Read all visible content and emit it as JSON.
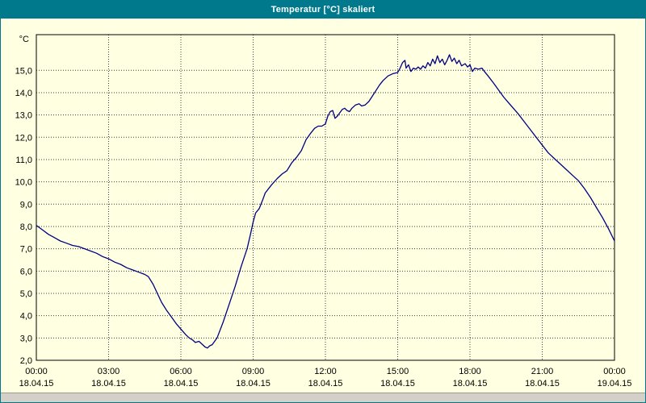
{
  "window": {
    "title": "Temperatur [°C] skaliert"
  },
  "colors": {
    "titlebar": "#00798C",
    "background": "#FFFFE1",
    "series": "#000080",
    "grid": "#404040",
    "frame": "#000000"
  },
  "chart_data": {
    "type": "line",
    "title": "Temperatur [°C] skaliert",
    "grid": "dotted",
    "legend": "none",
    "xlabel": "",
    "ylabel": "",
    "xlim": [
      0,
      24
    ],
    "ylim": [
      2,
      16.6
    ],
    "y_axis": {
      "unit": "°C",
      "ticks": [
        {
          "value": 15,
          "label": "15,0"
        },
        {
          "value": 14,
          "label": "14,0"
        },
        {
          "value": 13,
          "label": "13,0"
        },
        {
          "value": 12,
          "label": "12,0"
        },
        {
          "value": 11,
          "label": "11,0"
        },
        {
          "value": 10,
          "label": "10,0"
        },
        {
          "value": 9,
          "label": "9,0"
        },
        {
          "value": 8,
          "label": "8,0"
        },
        {
          "value": 7,
          "label": "7,0"
        },
        {
          "value": 6,
          "label": "6,0"
        },
        {
          "value": 5,
          "label": "5,0"
        },
        {
          "value": 4,
          "label": "4,0"
        },
        {
          "value": 3,
          "label": "3,0"
        },
        {
          "value": 2,
          "label": "2,0"
        }
      ]
    },
    "x_axis": {
      "ticks": [
        {
          "hour": 0,
          "time": "00:00",
          "date": "18.04.15"
        },
        {
          "hour": 3,
          "time": "03:00",
          "date": "18.04.15"
        },
        {
          "hour": 6,
          "time": "06:00",
          "date": "18.04.15"
        },
        {
          "hour": 9,
          "time": "09:00",
          "date": "18.04.15"
        },
        {
          "hour": 12,
          "time": "12:00",
          "date": "18.04.15"
        },
        {
          "hour": 15,
          "time": "15:00",
          "date": "18.04.15"
        },
        {
          "hour": 18,
          "time": "18:00",
          "date": "18.04.15"
        },
        {
          "hour": 21,
          "time": "21:00",
          "date": "18.04.15"
        },
        {
          "hour": 24,
          "time": "00:00",
          "date": "19.04.15"
        }
      ]
    },
    "series": [
      {
        "name": "Temperatur [°C]",
        "color": "#000080",
        "points": [
          [
            0,
            8.05
          ],
          [
            0.25,
            7.85
          ],
          [
            0.5,
            7.65
          ],
          [
            0.75,
            7.5
          ],
          [
            1,
            7.35
          ],
          [
            1.25,
            7.25
          ],
          [
            1.5,
            7.15
          ],
          [
            1.75,
            7.1
          ],
          [
            2,
            7.0
          ],
          [
            2.25,
            6.9
          ],
          [
            2.5,
            6.8
          ],
          [
            2.75,
            6.65
          ],
          [
            3,
            6.55
          ],
          [
            3.25,
            6.4
          ],
          [
            3.5,
            6.3
          ],
          [
            3.75,
            6.15
          ],
          [
            4,
            6.05
          ],
          [
            4.25,
            5.95
          ],
          [
            4.5,
            5.85
          ],
          [
            4.65,
            5.75
          ],
          [
            4.85,
            5.4
          ],
          [
            5,
            5.05
          ],
          [
            5.2,
            4.6
          ],
          [
            5.4,
            4.25
          ],
          [
            5.6,
            3.95
          ],
          [
            5.8,
            3.65
          ],
          [
            6,
            3.4
          ],
          [
            6.2,
            3.15
          ],
          [
            6.35,
            3.0
          ],
          [
            6.5,
            2.9
          ],
          [
            6.6,
            2.8
          ],
          [
            6.75,
            2.85
          ],
          [
            6.9,
            2.7
          ],
          [
            7,
            2.6
          ],
          [
            7.1,
            2.55
          ],
          [
            7.2,
            2.65
          ],
          [
            7.3,
            2.7
          ],
          [
            7.5,
            3.0
          ],
          [
            7.75,
            3.7
          ],
          [
            8,
            4.5
          ],
          [
            8.25,
            5.3
          ],
          [
            8.5,
            6.2
          ],
          [
            8.75,
            7.0
          ],
          [
            8.9,
            7.7
          ],
          [
            9,
            8.2
          ],
          [
            9.1,
            8.6
          ],
          [
            9.25,
            8.8
          ],
          [
            9.4,
            9.2
          ],
          [
            9.5,
            9.5
          ],
          [
            9.75,
            9.85
          ],
          [
            10,
            10.15
          ],
          [
            10.2,
            10.35
          ],
          [
            10.4,
            10.5
          ],
          [
            10.6,
            10.85
          ],
          [
            10.8,
            11.1
          ],
          [
            11,
            11.4
          ],
          [
            11.2,
            11.9
          ],
          [
            11.4,
            12.2
          ],
          [
            11.55,
            12.4
          ],
          [
            11.7,
            12.5
          ],
          [
            11.85,
            12.5
          ],
          [
            12,
            12.6
          ],
          [
            12.1,
            12.95
          ],
          [
            12.2,
            13.15
          ],
          [
            12.3,
            13.2
          ],
          [
            12.4,
            12.85
          ],
          [
            12.5,
            12.95
          ],
          [
            12.6,
            13.1
          ],
          [
            12.7,
            13.25
          ],
          [
            12.8,
            13.3
          ],
          [
            12.9,
            13.2
          ],
          [
            13,
            13.15
          ],
          [
            13.1,
            13.3
          ],
          [
            13.25,
            13.45
          ],
          [
            13.4,
            13.5
          ],
          [
            13.5,
            13.4
          ],
          [
            13.65,
            13.45
          ],
          [
            13.8,
            13.6
          ],
          [
            13.95,
            13.85
          ],
          [
            14.1,
            14.1
          ],
          [
            14.25,
            14.35
          ],
          [
            14.4,
            14.55
          ],
          [
            14.6,
            14.75
          ],
          [
            14.8,
            14.85
          ],
          [
            15,
            14.9
          ],
          [
            15.1,
            15.1
          ],
          [
            15.2,
            15.35
          ],
          [
            15.3,
            15.45
          ],
          [
            15.35,
            15.1
          ],
          [
            15.45,
            15.25
          ],
          [
            15.55,
            14.95
          ],
          [
            15.65,
            15.1
          ],
          [
            15.75,
            15.05
          ],
          [
            15.85,
            15.15
          ],
          [
            15.95,
            15.05
          ],
          [
            16.05,
            15.2
          ],
          [
            16.15,
            15.1
          ],
          [
            16.25,
            15.35
          ],
          [
            16.35,
            15.2
          ],
          [
            16.45,
            15.5
          ],
          [
            16.55,
            15.3
          ],
          [
            16.65,
            15.65
          ],
          [
            16.75,
            15.35
          ],
          [
            16.85,
            15.5
          ],
          [
            16.95,
            15.25
          ],
          [
            17.05,
            15.45
          ],
          [
            17.15,
            15.7
          ],
          [
            17.25,
            15.4
          ],
          [
            17.35,
            15.55
          ],
          [
            17.45,
            15.3
          ],
          [
            17.55,
            15.45
          ],
          [
            17.65,
            15.2
          ],
          [
            17.8,
            15.3
          ],
          [
            17.9,
            15.15
          ],
          [
            18,
            15.25
          ],
          [
            18.1,
            14.95
          ],
          [
            18.2,
            15.1
          ],
          [
            18.35,
            15.05
          ],
          [
            18.5,
            15.1
          ],
          [
            18.6,
            14.95
          ],
          [
            18.75,
            14.75
          ],
          [
            19,
            14.4
          ],
          [
            19.2,
            14.1
          ],
          [
            19.4,
            13.8
          ],
          [
            19.6,
            13.55
          ],
          [
            19.8,
            13.3
          ],
          [
            20,
            13.05
          ],
          [
            20.25,
            12.7
          ],
          [
            20.5,
            12.35
          ],
          [
            20.75,
            12.0
          ],
          [
            21,
            11.65
          ],
          [
            21.25,
            11.3
          ],
          [
            21.5,
            11.05
          ],
          [
            21.75,
            10.8
          ],
          [
            22,
            10.55
          ],
          [
            22.25,
            10.3
          ],
          [
            22.5,
            10.05
          ],
          [
            22.75,
            9.7
          ],
          [
            23,
            9.3
          ],
          [
            23.25,
            8.85
          ],
          [
            23.5,
            8.4
          ],
          [
            23.75,
            7.9
          ],
          [
            24,
            7.35
          ]
        ]
      }
    ]
  }
}
